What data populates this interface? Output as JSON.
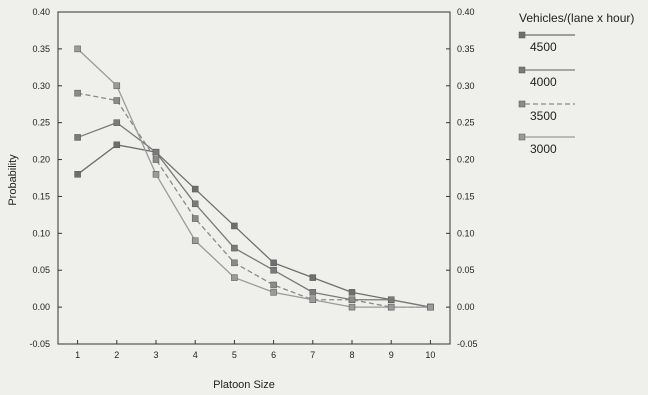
{
  "chart_data": {
    "type": "line",
    "xlabel": "Platoon Size",
    "ylabel": "Probability",
    "x": [
      1,
      2,
      3,
      4,
      5,
      6,
      7,
      8,
      9,
      10
    ],
    "xlim": [
      0.5,
      10.5
    ],
    "ylim": [
      -0.05,
      0.4
    ],
    "y_ticks": [
      -0.05,
      0.0,
      0.05,
      0.1,
      0.15,
      0.2,
      0.25,
      0.3,
      0.35,
      0.4
    ],
    "y_tick_labels": [
      "-0.05",
      "0.00",
      "0.05",
      "0.10",
      "0.15",
      "0.20",
      "0.25",
      "0.30",
      "0.35",
      "0.40"
    ],
    "right_axis_mirrors_left": true,
    "grid": false,
    "legend": {
      "title": "Vehicles/(lane x hour)",
      "placement": "right-outside"
    },
    "series": [
      {
        "name": "4500",
        "values": [
          0.18,
          0.22,
          0.21,
          0.16,
          0.11,
          0.06,
          0.04,
          0.02,
          0.01,
          0.0
        ],
        "color": "#6e6e6e",
        "dash": "solid"
      },
      {
        "name": "4000",
        "values": [
          0.23,
          0.25,
          0.21,
          0.14,
          0.08,
          0.05,
          0.02,
          0.01,
          0.01,
          0.0
        ],
        "color": "#7a7a7a",
        "dash": "solid"
      },
      {
        "name": "3500",
        "values": [
          0.29,
          0.28,
          0.2,
          0.12,
          0.06,
          0.03,
          0.01,
          0.01,
          0.0,
          0.0
        ],
        "color": "#8a8a8a",
        "dash": "dashed"
      },
      {
        "name": "3000",
        "values": [
          0.35,
          0.3,
          0.18,
          0.09,
          0.04,
          0.02,
          0.01,
          0.0,
          0.0,
          0.0
        ],
        "color": "#9a9a9a",
        "dash": "solid"
      }
    ]
  }
}
